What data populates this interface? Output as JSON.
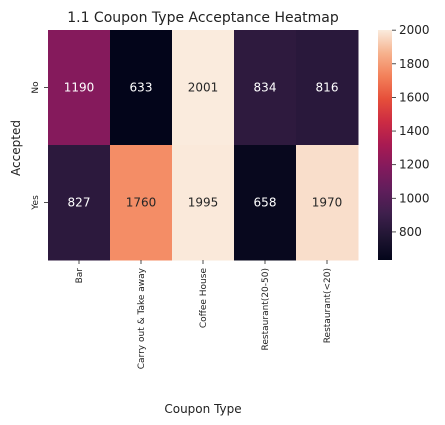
{
  "chart_data": {
    "type": "heatmap",
    "title": "1.1 Coupon Type Acceptance Heatmap",
    "xlabel": "Coupon Type",
    "ylabel": "Accepted",
    "x_categories": [
      "Bar",
      "Carry out & Take away",
      "Coffee House",
      "Restaurant(20-50)",
      "Restaurant(<20)"
    ],
    "y_categories": [
      "No",
      "Yes"
    ],
    "values": [
      [
        1190,
        633,
        2001,
        834,
        816
      ],
      [
        827,
        1760,
        1995,
        658,
        1970
      ]
    ],
    "colorbar": {
      "range": [
        633,
        2001
      ],
      "ticks": [
        800,
        1000,
        1200,
        1400,
        1600,
        1800,
        2000
      ]
    },
    "colormap": "rocket",
    "annotations": "cell values shown"
  }
}
